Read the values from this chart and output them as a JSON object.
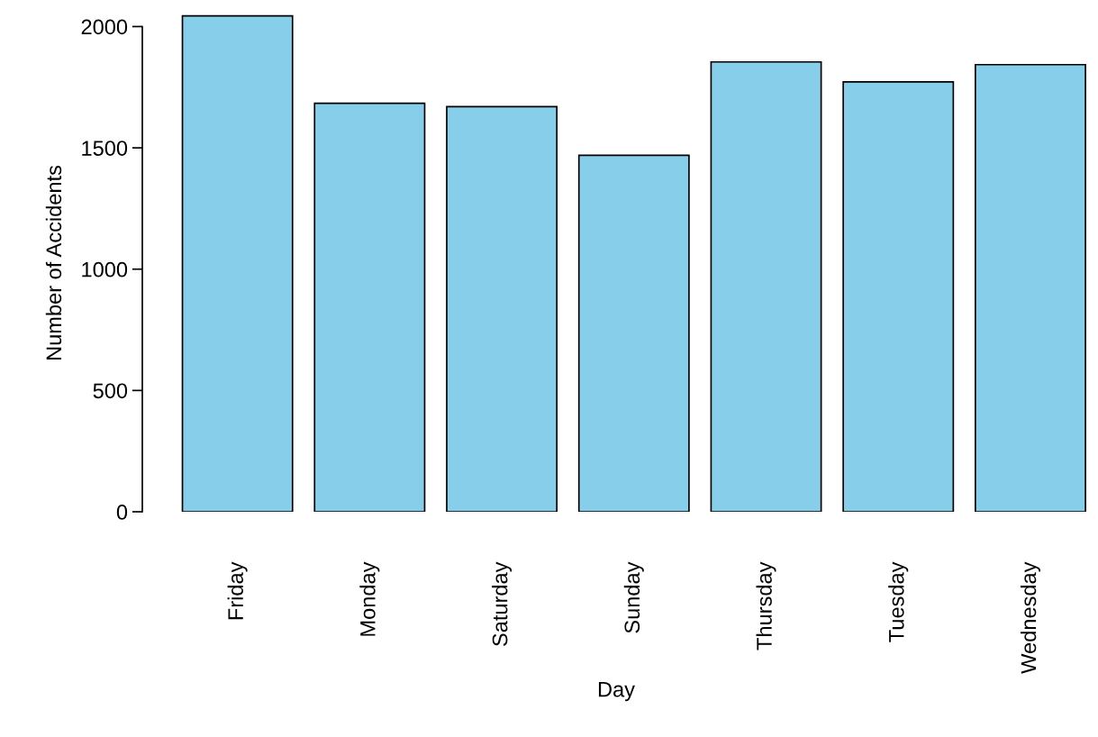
{
  "chart_data": {
    "type": "bar",
    "xlabel": "Day",
    "ylabel": "Number of Accidents",
    "categories": [
      "Friday",
      "Monday",
      "Saturday",
      "Sunday",
      "Thursday",
      "Tuesday",
      "Wednesday"
    ],
    "values": [
      2044,
      1684,
      1670,
      1469,
      1854,
      1772,
      1843
    ],
    "color": "#87ceeb",
    "ylim": [
      0,
      2050
    ],
    "yticks": [
      0,
      500,
      1000,
      1500,
      2000
    ],
    "grid": false
  }
}
